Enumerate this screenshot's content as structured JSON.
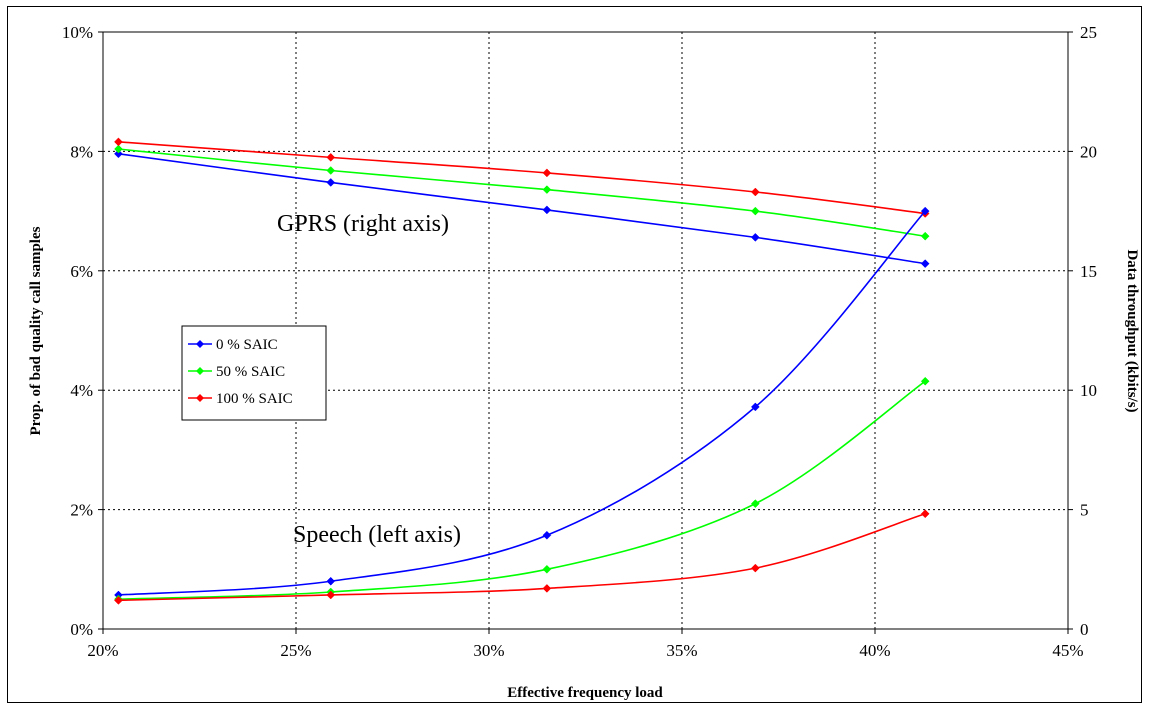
{
  "chart_data": {
    "type": "line",
    "xlabel": "Effective frequency load",
    "ylabel": "Prop. of bad quality call samples",
    "y2label": "Data throughput (kbits/s)",
    "x_ticks": [
      "20%",
      "25%",
      "30%",
      "35%",
      "40%",
      "45%"
    ],
    "y_ticks": [
      "0%",
      "2%",
      "4%",
      "6%",
      "8%",
      "10%"
    ],
    "y2_ticks": [
      "0",
      "5",
      "10",
      "15",
      "20",
      "25"
    ],
    "xlim": [
      20,
      45
    ],
    "ylim": [
      0,
      10
    ],
    "y2lim": [
      0,
      25
    ],
    "grid": true,
    "legend_position": "left-middle",
    "annotations": {
      "gprs": "GPRS (right axis)",
      "speech": "Speech (left axis)"
    },
    "series": [
      {
        "name": "0 % SAIC",
        "color": "#0000ff",
        "axis": "right",
        "group": "gprs",
        "x": [
          20.4,
          25.9,
          31.5,
          36.9,
          41.3
        ],
        "y": [
          19.9,
          18.7,
          17.55,
          16.4,
          15.3
        ]
      },
      {
        "name": "50 % SAIC",
        "color": "#00ff00",
        "axis": "right",
        "group": "gprs",
        "x": [
          20.4,
          25.9,
          31.5,
          36.9,
          41.3
        ],
        "y": [
          20.1,
          19.2,
          18.4,
          17.5,
          16.45
        ]
      },
      {
        "name": "100 % SAIC",
        "color": "#ff0000",
        "axis": "right",
        "group": "gprs",
        "x": [
          20.4,
          25.9,
          31.5,
          36.9,
          41.3
        ],
        "y": [
          20.4,
          19.75,
          19.1,
          18.3,
          17.4
        ]
      },
      {
        "name": "0 % SAIC",
        "color": "#0000ff",
        "axis": "left",
        "group": "speech",
        "x": [
          20.4,
          25.9,
          31.5,
          36.9,
          41.3
        ],
        "y": [
          0.57,
          0.8,
          1.57,
          3.72,
          7.0
        ]
      },
      {
        "name": "50 % SAIC",
        "color": "#00ff00",
        "axis": "left",
        "group": "speech",
        "x": [
          20.4,
          25.9,
          31.5,
          36.9,
          41.3
        ],
        "y": [
          0.5,
          0.62,
          1.0,
          2.1,
          4.15
        ]
      },
      {
        "name": "100 % SAIC",
        "color": "#ff0000",
        "axis": "left",
        "group": "speech",
        "x": [
          20.4,
          25.9,
          31.5,
          36.9,
          41.3
        ],
        "y": [
          0.48,
          0.57,
          0.68,
          1.02,
          1.93
        ]
      }
    ],
    "legend": [
      {
        "name": "0 % SAIC",
        "color": "#0000ff"
      },
      {
        "name": "50 % SAIC",
        "color": "#00ff00"
      },
      {
        "name": "100 % SAIC",
        "color": "#ff0000"
      }
    ]
  }
}
